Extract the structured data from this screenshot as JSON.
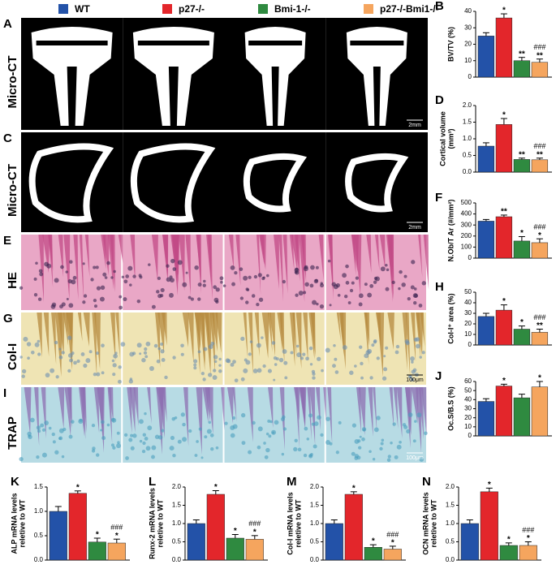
{
  "groups": [
    {
      "name": "WT",
      "color": "#2352a8"
    },
    {
      "name": "p27-/-",
      "color": "#e3262b"
    },
    {
      "name": "Bmi-1-/-",
      "color": "#2f8a40"
    },
    {
      "name": "p27-/-Bmi1-/-",
      "color": "#f5a55e"
    }
  ],
  "image_panels": [
    {
      "letter": "A",
      "label": "Micro-CT",
      "scale": "2mm",
      "style": "ct"
    },
    {
      "letter": "C",
      "label": "Micro-CT",
      "scale": "2mm",
      "style": "cross"
    },
    {
      "letter": "E",
      "label": "HE",
      "style": "he"
    },
    {
      "letter": "G",
      "label": "Col-I",
      "scale": "100μm",
      "style": "col"
    },
    {
      "letter": "I",
      "label": "TRAP",
      "scale": "100μm",
      "style": "trap"
    }
  ],
  "chart_data": [
    {
      "type": "bar",
      "letter": "B",
      "ylabel": [
        "BV/TV (%)"
      ],
      "values": [
        25,
        36,
        10,
        9
      ],
      "errors": [
        2,
        2.5,
        2,
        2
      ],
      "stars": [
        null,
        "*",
        "**",
        "**"
      ],
      "hashes": [
        null,
        null,
        null,
        "###"
      ],
      "ylim": [
        0,
        40
      ],
      "yticks": [
        0,
        10,
        20,
        30,
        40
      ]
    },
    {
      "type": "bar",
      "letter": "D",
      "ylabel": [
        "Cortical volume",
        "(mm³)"
      ],
      "values": [
        0.78,
        1.43,
        0.38,
        0.37
      ],
      "errors": [
        0.1,
        0.18,
        0.04,
        0.05
      ],
      "stars": [
        null,
        "*",
        "**",
        "**"
      ],
      "hashes": [
        null,
        null,
        null,
        "###"
      ],
      "ylim": [
        0,
        2
      ],
      "yticks": [
        {
          "value": 0,
          "label": "0.0"
        },
        0.5,
        {
          "value": 1,
          "label": "1.0"
        },
        1.5,
        {
          "value": 2,
          "label": "2.0"
        }
      ]
    },
    {
      "type": "bar",
      "letter": "F",
      "ylabel": [
        "N.Ob/T Ar (#/mm²)"
      ],
      "values": [
        335,
        375,
        155,
        140
      ],
      "errors": [
        15,
        15,
        40,
        35
      ],
      "stars": [
        null,
        "**",
        "*",
        "*"
      ],
      "hashes": [
        null,
        null,
        null,
        "###"
      ],
      "ylim": [
        0,
        500
      ],
      "yticks": [
        0,
        100,
        200,
        300,
        400,
        500
      ]
    },
    {
      "type": "bar",
      "letter": "H",
      "ylabel": [
        "Col-I⁺ area (%)"
      ],
      "values": [
        27,
        33,
        15,
        12
      ],
      "errors": [
        3,
        5,
        3,
        3
      ],
      "stars": [
        null,
        "*",
        "*",
        "**"
      ],
      "hashes": [
        null,
        null,
        null,
        "###"
      ],
      "ylim": [
        0,
        50
      ],
      "yticks": [
        0,
        10,
        20,
        30,
        40,
        50
      ]
    },
    {
      "type": "bar",
      "letter": "J",
      "ylabel": [
        "Oc.S/B.S (%)"
      ],
      "values": [
        38,
        55,
        42,
        54
      ],
      "errors": [
        3,
        2,
        4,
        6
      ],
      "stars": [
        null,
        "*",
        null,
        "*"
      ],
      "hashes": [
        null,
        null,
        null,
        null
      ],
      "ylim": [
        0,
        60
      ],
      "yticks": [
        0,
        10,
        20,
        30,
        40,
        50,
        60
      ]
    },
    {
      "type": "bar",
      "letter": "K",
      "ylabel": [
        "ALP mRNA  levels",
        "reletive to WT"
      ],
      "values": [
        1.0,
        1.37,
        0.37,
        0.35
      ],
      "errors": [
        0.1,
        0.05,
        0.08,
        0.08
      ],
      "stars": [
        null,
        "*",
        "*",
        "*"
      ],
      "hashes": [
        null,
        null,
        null,
        "###"
      ],
      "ylim": [
        0,
        1.5
      ],
      "yticks": [
        {
          "value": 0,
          "label": "0.0"
        },
        0.5,
        {
          "value": 1,
          "label": "1.0"
        },
        1.5
      ]
    },
    {
      "type": "bar",
      "letter": "L",
      "ylabel": [
        "Runx-2 mRNA  levels",
        "reletive to WT"
      ],
      "values": [
        1.0,
        1.8,
        0.6,
        0.57
      ],
      "errors": [
        0.1,
        0.1,
        0.1,
        0.1
      ],
      "stars": [
        null,
        "*",
        "*",
        "*"
      ],
      "hashes": [
        null,
        null,
        null,
        "###"
      ],
      "ylim": [
        0,
        2
      ],
      "yticks": [
        {
          "value": 0,
          "label": "0.0"
        },
        0.5,
        {
          "value": 1,
          "label": "1.0"
        },
        1.5,
        {
          "value": 2,
          "label": "2.0"
        }
      ]
    },
    {
      "type": "bar",
      "letter": "M",
      "ylabel": [
        "Col-I mRNA  levels",
        "reletive to WT"
      ],
      "values": [
        1.0,
        1.8,
        0.35,
        0.3
      ],
      "errors": [
        0.1,
        0.07,
        0.07,
        0.08
      ],
      "stars": [
        null,
        "*",
        "*",
        "*"
      ],
      "hashes": [
        null,
        null,
        null,
        "###"
      ],
      "ylim": [
        0,
        2
      ],
      "yticks": [
        {
          "value": 0,
          "label": "0.0"
        },
        0.5,
        {
          "value": 1,
          "label": "1.0"
        },
        1.5,
        {
          "value": 2,
          "label": "2.0"
        }
      ]
    },
    {
      "type": "bar",
      "letter": "N",
      "ylabel": [
        "OCN mRNA  levels",
        "reletive to WT"
      ],
      "values": [
        1.0,
        1.87,
        0.4,
        0.4
      ],
      "errors": [
        0.1,
        0.1,
        0.07,
        0.1
      ],
      "stars": [
        null,
        "*",
        "*",
        "*"
      ],
      "hashes": [
        null,
        null,
        null,
        "###"
      ],
      "ylim": [
        0,
        2
      ],
      "yticks": [
        {
          "value": 0,
          "label": "0.0"
        },
        0.5,
        {
          "value": 1,
          "label": "1.0"
        },
        1.5,
        {
          "value": 2,
          "label": "2.0"
        }
      ]
    }
  ]
}
